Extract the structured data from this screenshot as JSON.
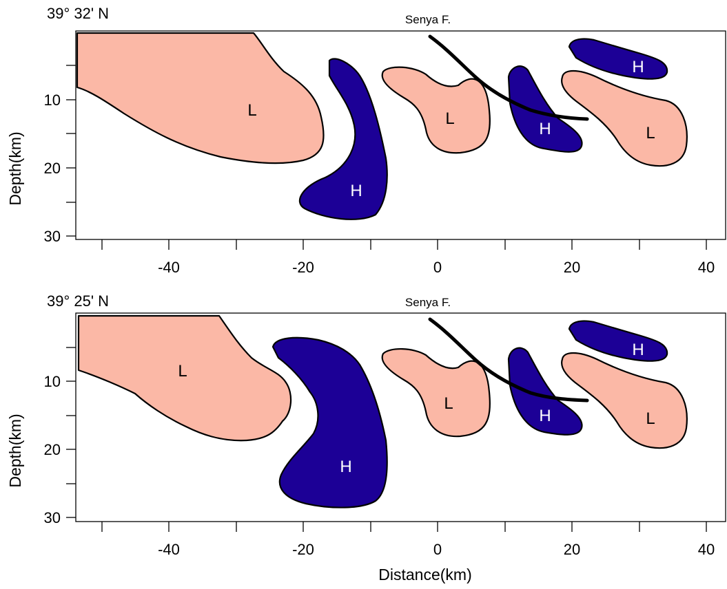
{
  "colors": {
    "low": "#fbb8a6",
    "high": "#1c0096",
    "fault": "#000000",
    "frame": "#000000"
  },
  "xlabel": "Distance(km)",
  "ylabel": "Depth(km)",
  "x_ticks": [
    "-40",
    "-20",
    "0",
    "20",
    "40"
  ],
  "y_ticks": [
    "10",
    "20",
    "30"
  ],
  "panels": [
    {
      "latitude_label": "39° 32' N",
      "fault_label": "Senya F.",
      "anomalies": [
        {
          "label": "L",
          "kind": "low",
          "center_km": [
            -28,
            11.5
          ]
        },
        {
          "label": "H",
          "kind": "high",
          "center_km": [
            -12,
            23.5
          ]
        },
        {
          "label": "L",
          "kind": "low",
          "center_km": [
            2,
            12.5
          ]
        },
        {
          "label": "H",
          "kind": "high",
          "center_km": [
            16,
            14
          ]
        },
        {
          "label": "H",
          "kind": "high",
          "center_km": [
            30,
            5
          ]
        },
        {
          "label": "L",
          "kind": "low",
          "center_km": [
            32,
            15
          ]
        }
      ]
    },
    {
      "latitude_label": "39° 25' N",
      "fault_label": "Senya F.",
      "anomalies": [
        {
          "label": "L",
          "kind": "low",
          "center_km": [
            -38,
            8.5
          ]
        },
        {
          "label": "H",
          "kind": "high",
          "center_km": [
            -13,
            22.5
          ]
        },
        {
          "label": "L",
          "kind": "low",
          "center_km": [
            2,
            13
          ]
        },
        {
          "label": "H",
          "kind": "high",
          "center_km": [
            16,
            15
          ]
        },
        {
          "label": "H",
          "kind": "high",
          "center_km": [
            30,
            5.5
          ]
        },
        {
          "label": "L",
          "kind": "low",
          "center_km": [
            32,
            15.5
          ]
        }
      ]
    }
  ]
}
